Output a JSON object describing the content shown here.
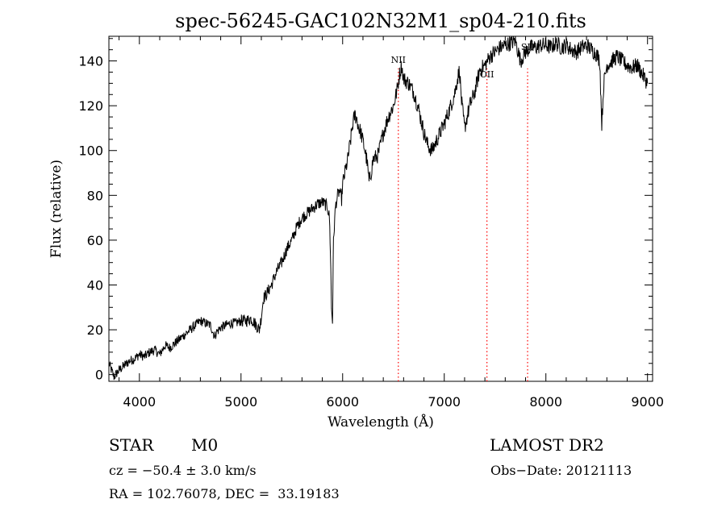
{
  "chart_data": {
    "type": "line",
    "title": "spec-56245-GAC102N32M1_sp04-210.fits",
    "xlabel": "Wavelength (Å)",
    "ylabel": "Flux (relative)",
    "xlim": [
      3700,
      9050
    ],
    "ylim": [
      -3,
      151
    ],
    "xticks": [
      4000,
      5000,
      6000,
      7000,
      8000,
      9000
    ],
    "yticks": [
      0,
      20,
      40,
      60,
      80,
      100,
      120,
      140
    ],
    "grid": false,
    "line_color": "#000000",
    "series": [
      {
        "x": [
          3700,
          3750,
          3800,
          3850,
          3900,
          3950,
          4000,
          4050,
          4100,
          4150,
          4200,
          4250,
          4300,
          4350,
          4400,
          4450,
          4500,
          4550,
          4600,
          4650,
          4700,
          4740,
          4760,
          4800,
          4850,
          4900,
          4950,
          5000,
          5050,
          5100,
          5150,
          5180,
          5200,
          5220,
          5250,
          5300,
          5350,
          5400,
          5450,
          5500,
          5550,
          5600,
          5650,
          5700,
          5750,
          5800,
          5850,
          5870,
          5880,
          5890,
          5900,
          5910,
          5930,
          5950,
          5970,
          5990,
          6000,
          6050,
          6080,
          6100,
          6120,
          6140,
          6160,
          6180,
          6200,
          6220,
          6240,
          6260,
          6280,
          6300,
          6350,
          6400,
          6450,
          6500,
          6540,
          6560,
          6580,
          6600,
          6650,
          6700,
          6750,
          6800,
          6840,
          6880,
          6920,
          6960,
          7000,
          7050,
          7100,
          7130,
          7150,
          7170,
          7200,
          7250,
          7300,
          7350,
          7400,
          7450,
          7500,
          7550,
          7600,
          7650,
          7700,
          7750,
          7800,
          7850,
          7900,
          7950,
          8000,
          8050,
          8100,
          8150,
          8200,
          8250,
          8300,
          8350,
          8400,
          8450,
          8500,
          8530,
          8550,
          8570,
          8600,
          8650,
          8700,
          8750,
          8800,
          8850,
          8900,
          8950,
          9000
        ],
        "y": [
          5,
          -1,
          2,
          4,
          6,
          7,
          9,
          8,
          10,
          11,
          9,
          13,
          12,
          14,
          16,
          18,
          20,
          22,
          24,
          23,
          22,
          17,
          19,
          21,
          22,
          23,
          23,
          24,
          24,
          25,
          22,
          20,
          26,
          34,
          36,
          40,
          46,
          50,
          56,
          60,
          66,
          70,
          72,
          74,
          76,
          77,
          75,
          70,
          55,
          30,
          24,
          60,
          75,
          80,
          82,
          78,
          85,
          96,
          105,
          112,
          116,
          114,
          110,
          108,
          104,
          100,
          95,
          86,
          90,
          96,
          98,
          108,
          115,
          120,
          128,
          134,
          138,
          132,
          130,
          126,
          118,
          108,
          102,
          100,
          104,
          108,
          112,
          118,
          125,
          132,
          136,
          122,
          110,
          120,
          126,
          136,
          138,
          142,
          144,
          146,
          147,
          148,
          149,
          140,
          144,
          146,
          146,
          147,
          147,
          146,
          148,
          146,
          147,
          145,
          144,
          146,
          147,
          145,
          143,
          140,
          112,
          130,
          138,
          140,
          142,
          140,
          138,
          137,
          138,
          134,
          130
        ]
      }
    ],
    "line_labels": [
      {
        "label": "NII",
        "x": 6548,
        "color": "#ff0000"
      },
      {
        "label": "OII",
        "x": 7420,
        "color": "#ff0000"
      },
      {
        "label": "SII",
        "x": 7820,
        "color": "#ff0000"
      }
    ]
  },
  "info": {
    "object_class": "STAR",
    "subclass": "M0",
    "survey": "LAMOST DR2",
    "redshift": "cz = −50.4 ± 3.0 km/s",
    "obs_date": "Obs−Date: 20121113",
    "coords": "RA = 102.76078, DEC =  33.19183"
  }
}
